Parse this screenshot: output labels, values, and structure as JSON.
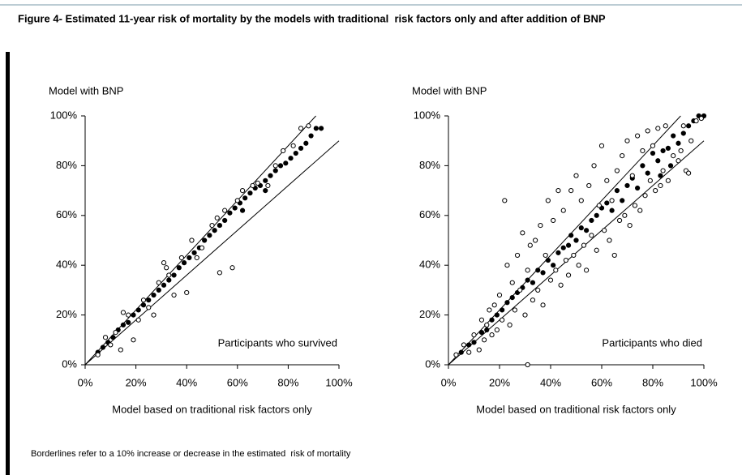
{
  "title": "Figure 4- Estimated 11-year risk of mortality by the models with traditional  risk factors only and after addition of BNP",
  "footnote": "Borderlines refer to a 10% increase or decrease in the estimated  risk of mortality",
  "chart_data": [
    {
      "type": "scatter",
      "y_label": "Model with BNP",
      "x_label": "Model based on traditional risk factors only",
      "annotation": "Participants who survived",
      "xlim": [
        0,
        100
      ],
      "ylim": [
        0,
        100
      ],
      "xticks": [
        {
          "value": 0,
          "label": "0%"
        },
        {
          "value": 20,
          "label": "20%"
        },
        {
          "value": 40,
          "label": "40%"
        },
        {
          "value": 60,
          "label": "60%"
        },
        {
          "value": 80,
          "label": "80%"
        },
        {
          "value": 100,
          "label": "100%"
        }
      ],
      "yticks": [
        {
          "value": 0,
          "label": "0%"
        },
        {
          "value": 20,
          "label": "20%"
        },
        {
          "value": 40,
          "label": "40%"
        },
        {
          "value": 60,
          "label": "60%"
        },
        {
          "value": 80,
          "label": "80%"
        },
        {
          "value": 100,
          "label": "100%"
        }
      ],
      "reference_lines": [
        {
          "slope": 1.1
        },
        {
          "slope": 0.9
        }
      ],
      "series": [
        {
          "marker": "filled",
          "color": "#000000",
          "x": [
            5,
            7,
            9,
            11,
            13,
            15,
            17,
            19,
            21,
            23,
            25,
            27,
            29,
            31,
            33,
            35,
            37,
            39,
            41,
            43,
            45,
            47,
            49,
            51,
            53,
            55,
            57,
            59,
            61,
            63,
            65,
            67,
            69,
            71,
            73,
            75,
            77,
            79,
            81,
            83,
            85,
            87,
            89,
            91,
            93,
            62,
            71
          ],
          "y": [
            5,
            7,
            9,
            11,
            14,
            16,
            17,
            20,
            22,
            24,
            26,
            28,
            30,
            32,
            34,
            36,
            39,
            41,
            43,
            45,
            47,
            50,
            52,
            54,
            56,
            58,
            61,
            63,
            65,
            67,
            69,
            71,
            72,
            74,
            76,
            78,
            80,
            81,
            83,
            85,
            87,
            89,
            92,
            95,
            95,
            62,
            70
          ]
        },
        {
          "marker": "open",
          "color": "#000000",
          "x": [
            5,
            8,
            10,
            12,
            14,
            15,
            17,
            19,
            21,
            23,
            25,
            27,
            29,
            31,
            32,
            33,
            35,
            38,
            40,
            42,
            44,
            46,
            50,
            52,
            53,
            55,
            58,
            60,
            62,
            66,
            68,
            72,
            75,
            78,
            82,
            85,
            88
          ],
          "y": [
            4,
            11,
            8,
            13,
            6,
            21,
            20,
            10,
            18,
            26,
            23,
            20,
            33,
            41,
            39,
            36,
            28,
            43,
            29,
            50,
            43,
            47,
            56,
            59,
            37,
            62,
            39,
            66,
            70,
            72,
            73,
            72,
            80,
            86,
            88,
            95,
            96
          ]
        }
      ]
    },
    {
      "type": "scatter",
      "y_label": "Model with BNP",
      "x_label": "Model based on traditional risk factors only",
      "annotation": "Participants who died",
      "xlim": [
        0,
        100
      ],
      "ylim": [
        0,
        100
      ],
      "xticks": [
        {
          "value": 0,
          "label": "0%"
        },
        {
          "value": 20,
          "label": "20%"
        },
        {
          "value": 40,
          "label": "40%"
        },
        {
          "value": 60,
          "label": "60%"
        },
        {
          "value": 80,
          "label": "80%"
        },
        {
          "value": 100,
          "label": "100%"
        }
      ],
      "yticks": [
        {
          "value": 0,
          "label": "0%"
        },
        {
          "value": 20,
          "label": "20%"
        },
        {
          "value": 40,
          "label": "40%"
        },
        {
          "value": 60,
          "label": "60%"
        },
        {
          "value": 80,
          "label": "80%"
        },
        {
          "value": 100,
          "label": "100%"
        }
      ],
      "reference_lines": [
        {
          "slope": 1.1
        },
        {
          "slope": 0.9
        }
      ],
      "series": [
        {
          "marker": "filled",
          "color": "#000000",
          "x": [
            5,
            8,
            10,
            13,
            15,
            17,
            19,
            21,
            23,
            25,
            27,
            29,
            31,
            33,
            35,
            37,
            39,
            41,
            43,
            45,
            47,
            48,
            50,
            52,
            54,
            56,
            58,
            60,
            62,
            64,
            66,
            68,
            70,
            72,
            74,
            76,
            78,
            80,
            82,
            84,
            86,
            88,
            90,
            92,
            94,
            96,
            98,
            100,
            83,
            87
          ],
          "y": [
            5,
            8,
            9,
            13,
            14,
            18,
            20,
            22,
            25,
            27,
            29,
            31,
            34,
            33,
            38,
            37,
            42,
            40,
            45,
            47,
            48,
            52,
            50,
            55,
            54,
            58,
            60,
            63,
            65,
            62,
            70,
            66,
            72,
            75,
            71,
            80,
            77,
            85,
            82,
            86,
            87,
            92,
            89,
            93,
            96,
            98,
            100,
            100,
            76,
            80
          ]
        },
        {
          "marker": "open",
          "color": "#000000",
          "x": [
            3,
            6,
            8,
            10,
            12,
            13,
            14,
            15,
            16,
            17,
            18,
            19,
            20,
            21,
            22,
            23,
            24,
            25,
            26,
            27,
            28,
            29,
            30,
            31,
            31,
            32,
            33,
            34,
            35,
            36,
            37,
            38,
            39,
            40,
            41,
            42,
            43,
            44,
            45,
            46,
            47,
            48,
            49,
            50,
            51,
            52,
            53,
            54,
            55,
            56,
            57,
            58,
            59,
            60,
            61,
            62,
            63,
            64,
            65,
            66,
            67,
            68,
            69,
            70,
            71,
            72,
            73,
            74,
            75,
            76,
            77,
            78,
            79,
            80,
            81,
            82,
            83,
            84,
            85,
            86,
            88,
            90,
            91,
            92,
            93,
            94,
            95,
            97,
            99
          ],
          "y": [
            4,
            8,
            5,
            12,
            6,
            18,
            10,
            16,
            22,
            12,
            24,
            14,
            28,
            18,
            66,
            40,
            16,
            33,
            22,
            44,
            30,
            53,
            20,
            0,
            38,
            48,
            26,
            50,
            30,
            56,
            24,
            44,
            66,
            34,
            58,
            38,
            70,
            32,
            62,
            42,
            36,
            70,
            44,
            76,
            40,
            66,
            48,
            38,
            72,
            52,
            80,
            46,
            64,
            88,
            54,
            74,
            50,
            66,
            44,
            78,
            58,
            84,
            60,
            90,
            56,
            76,
            64,
            92,
            62,
            86,
            68,
            94,
            74,
            88,
            70,
            95,
            72,
            78,
            96,
            74,
            84,
            82,
            86,
            96,
            78,
            77,
            90,
            98,
            99
          ]
        }
      ]
    }
  ]
}
